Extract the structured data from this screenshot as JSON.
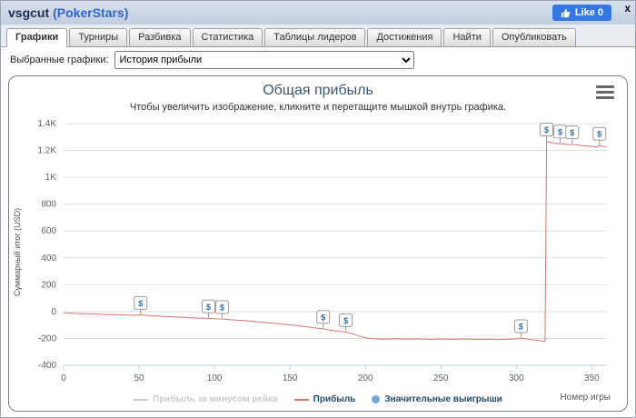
{
  "window": {
    "title_user": "vsgcut",
    "title_site": "(PokerStars)",
    "like_label": "Like 0",
    "close_label": "x"
  },
  "tabs": [
    {
      "id": "graphs",
      "label": "Графики",
      "active": true
    },
    {
      "id": "tournaments",
      "label": "Турниры",
      "active": false
    },
    {
      "id": "breakdown",
      "label": "Разбивка",
      "active": false
    },
    {
      "id": "statistics",
      "label": "Статистика",
      "active": false
    },
    {
      "id": "leaderboards",
      "label": "Таблицы лидеров",
      "active": false
    },
    {
      "id": "achievements",
      "label": "Достижения",
      "active": false
    },
    {
      "id": "find",
      "label": "Найти",
      "active": false
    },
    {
      "id": "publish",
      "label": "Опубликовать",
      "active": false
    }
  ],
  "graph_selector": {
    "label": "Выбранные графики:",
    "selected": "История прибыли"
  },
  "chart_data": {
    "type": "line",
    "title": "Общая прибыль",
    "subtitle": "Чтобы увеличить изображение, кликните и перетащите мышкой внутрь графика.",
    "xlabel": "Номер игры",
    "ylabel": "Суммарный итог (USD)",
    "xlim": [
      0,
      360
    ],
    "ylim": [
      -400,
      1400
    ],
    "grid": true,
    "legend_position": "bottom",
    "x_ticks": [
      0,
      50,
      100,
      150,
      200,
      250,
      300,
      350
    ],
    "y_ticks": [
      {
        "v": -400,
        "label": "-400"
      },
      {
        "v": -200,
        "label": "-200"
      },
      {
        "v": 0,
        "label": "0"
      },
      {
        "v": 200,
        "label": "200"
      },
      {
        "v": 400,
        "label": "400"
      },
      {
        "v": 600,
        "label": "600"
      },
      {
        "v": 800,
        "label": "800"
      },
      {
        "v": 1000,
        "label": "1K"
      },
      {
        "v": 1200,
        "label": "1.2K"
      },
      {
        "v": 1400,
        "label": "1.4K"
      }
    ],
    "legend": [
      {
        "label": "Прибыль за минусом рейка",
        "type": "line",
        "color": "#cccccc",
        "disabled": true
      },
      {
        "label": "Прибыль",
        "type": "line",
        "color": "#df7370",
        "disabled": false
      },
      {
        "label": "Значительные выигрыши",
        "type": "marker",
        "color": "#6fa8dc",
        "disabled": false
      }
    ],
    "series": [
      {
        "name": "Прибыль",
        "color": "#df7370",
        "points": [
          [
            0,
            -8
          ],
          [
            6,
            -12
          ],
          [
            12,
            -15
          ],
          [
            20,
            -18
          ],
          [
            28,
            -22
          ],
          [
            35,
            -24
          ],
          [
            42,
            -26
          ],
          [
            48,
            -28
          ],
          [
            51,
            -24
          ],
          [
            56,
            -30
          ],
          [
            62,
            -34
          ],
          [
            70,
            -38
          ],
          [
            78,
            -42
          ],
          [
            85,
            -46
          ],
          [
            92,
            -50
          ],
          [
            96,
            -50
          ],
          [
            100,
            -54
          ],
          [
            105,
            -55
          ],
          [
            110,
            -60
          ],
          [
            118,
            -66
          ],
          [
            125,
            -72
          ],
          [
            132,
            -80
          ],
          [
            140,
            -88
          ],
          [
            148,
            -96
          ],
          [
            155,
            -105
          ],
          [
            162,
            -115
          ],
          [
            168,
            -124
          ],
          [
            172,
            -128
          ],
          [
            176,
            -138
          ],
          [
            182,
            -146
          ],
          [
            187,
            -152
          ],
          [
            192,
            -168
          ],
          [
            196,
            -182
          ],
          [
            200,
            -196
          ],
          [
            205,
            -202
          ],
          [
            212,
            -206
          ],
          [
            220,
            -202
          ],
          [
            228,
            -206
          ],
          [
            235,
            -203
          ],
          [
            242,
            -207
          ],
          [
            250,
            -204
          ],
          [
            258,
            -207
          ],
          [
            265,
            -204
          ],
          [
            272,
            -207
          ],
          [
            280,
            -206
          ],
          [
            288,
            -209
          ],
          [
            295,
            -206
          ],
          [
            300,
            -203
          ],
          [
            303,
            -197
          ],
          [
            307,
            -205
          ],
          [
            312,
            -212
          ],
          [
            316,
            -218
          ],
          [
            319,
            -222
          ],
          [
            320,
            1268
          ],
          [
            323,
            1258
          ],
          [
            327,
            1250
          ],
          [
            329,
            1252
          ],
          [
            332,
            1246
          ],
          [
            335,
            1242
          ],
          [
            337,
            1247
          ],
          [
            340,
            1240
          ],
          [
            344,
            1236
          ],
          [
            348,
            1232
          ],
          [
            351,
            1228
          ],
          [
            353,
            1224
          ],
          [
            355,
            1236
          ],
          [
            358,
            1230
          ],
          [
            360,
            1228
          ]
        ]
      }
    ],
    "markers": {
      "symbol": "$",
      "label_color": "#2f6da3",
      "points": [
        [
          51,
          -24
        ],
        [
          96,
          -50
        ],
        [
          105,
          -55
        ],
        [
          172,
          -128
        ],
        [
          187,
          -152
        ],
        [
          303,
          -197
        ],
        [
          320,
          1268
        ],
        [
          329,
          1252
        ],
        [
          337,
          1247
        ],
        [
          355,
          1236
        ]
      ]
    }
  }
}
